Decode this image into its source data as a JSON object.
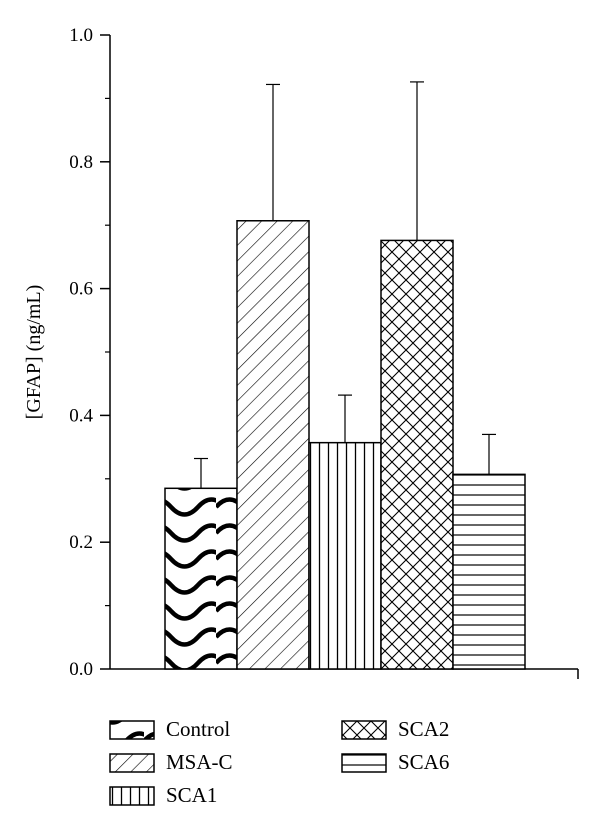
{
  "chart_data": {
    "type": "bar",
    "title": "",
    "xlabel": "",
    "ylabel": "[GFAP] (ng/mL)",
    "ylim": [
      0,
      1.0
    ],
    "yticks": [
      "0.0",
      "0.2",
      "0.4",
      "0.6",
      "0.8",
      "1.0"
    ],
    "categories": [
      "Control",
      "MSA-C",
      "SCA1",
      "SCA2",
      "SCA6"
    ],
    "values": [
      0.285,
      0.707,
      0.357,
      0.676,
      0.307
    ],
    "errors": [
      0.047,
      0.215,
      0.075,
      0.25,
      0.063
    ],
    "patterns": [
      "wave",
      "diagonal",
      "vertical",
      "crosshatch",
      "horizontal"
    ],
    "legend_position": "bottom",
    "grid": false
  },
  "legend": {
    "items": [
      {
        "label": "Control",
        "pattern": "wave"
      },
      {
        "label": "MSA-C",
        "pattern": "diagonal"
      },
      {
        "label": "SCA1",
        "pattern": "vertical"
      },
      {
        "label": "SCA2",
        "pattern": "crosshatch"
      },
      {
        "label": "SCA6",
        "pattern": "horizontal"
      }
    ]
  },
  "colors": {
    "stroke": "#000000",
    "fill": "#ffffff"
  }
}
